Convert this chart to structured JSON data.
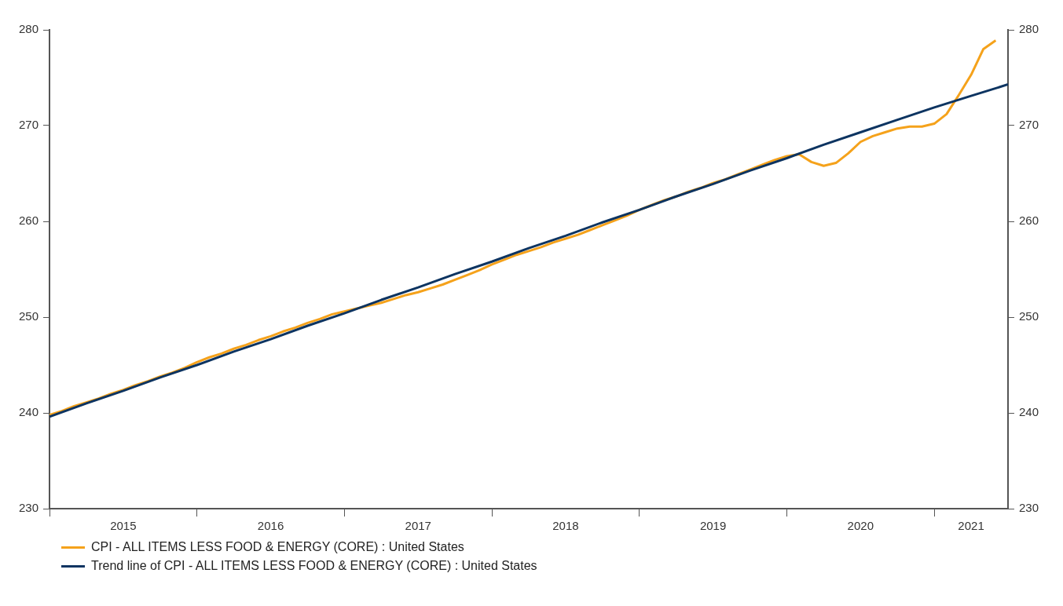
{
  "chart_data": {
    "type": "line",
    "x": [
      "2015-01",
      "2015-02",
      "2015-03",
      "2015-04",
      "2015-05",
      "2015-06",
      "2015-07",
      "2015-08",
      "2015-09",
      "2015-10",
      "2015-11",
      "2015-12",
      "2016-01",
      "2016-02",
      "2016-03",
      "2016-04",
      "2016-05",
      "2016-06",
      "2016-07",
      "2016-08",
      "2016-09",
      "2016-10",
      "2016-11",
      "2016-12",
      "2017-01",
      "2017-02",
      "2017-03",
      "2017-04",
      "2017-05",
      "2017-06",
      "2017-07",
      "2017-08",
      "2017-09",
      "2017-10",
      "2017-11",
      "2017-12",
      "2018-01",
      "2018-02",
      "2018-03",
      "2018-04",
      "2018-05",
      "2018-06",
      "2018-07",
      "2018-08",
      "2018-09",
      "2018-10",
      "2018-11",
      "2018-12",
      "2019-01",
      "2019-02",
      "2019-03",
      "2019-04",
      "2019-05",
      "2019-06",
      "2019-07",
      "2019-08",
      "2019-09",
      "2019-10",
      "2019-11",
      "2019-12",
      "2020-01",
      "2020-02",
      "2020-03",
      "2020-04",
      "2020-05",
      "2020-06",
      "2020-07",
      "2020-08",
      "2020-09",
      "2020-10",
      "2020-11",
      "2020-12",
      "2021-01",
      "2021-02",
      "2021-03",
      "2021-04",
      "2021-05",
      "2021-06"
    ],
    "series": [
      {
        "name": "CPI - ALL ITEMS LESS FOOD & ENERGY (CORE) : United States",
        "color": "#f5a21b",
        "values": [
          239.8,
          240.2,
          240.7,
          241.1,
          241.5,
          242.0,
          242.4,
          242.9,
          243.3,
          243.8,
          244.2,
          244.7,
          245.3,
          245.8,
          246.2,
          246.7,
          247.1,
          247.6,
          248.0,
          248.5,
          248.9,
          249.4,
          249.8,
          250.3,
          250.6,
          250.9,
          251.2,
          251.5,
          251.9,
          252.3,
          252.6,
          253.0,
          253.4,
          253.9,
          254.4,
          254.9,
          255.5,
          256.0,
          256.5,
          256.9,
          257.3,
          257.8,
          258.2,
          258.6,
          259.1,
          259.6,
          260.1,
          260.6,
          261.2,
          261.7,
          262.2,
          262.6,
          263.1,
          263.5,
          264.0,
          264.4,
          264.9,
          265.4,
          265.9,
          266.4,
          266.8,
          267.0,
          266.2,
          265.8,
          266.1,
          267.1,
          268.3,
          268.9,
          269.3,
          269.7,
          269.9,
          269.9,
          270.2,
          271.2,
          273.2,
          275.3,
          278.0,
          278.9
        ]
      },
      {
        "name": "Trend line of CPI - ALL ITEMS LESS FOOD & ENERGY (CORE) : United States",
        "type": "line",
        "color": "#0d3461",
        "x": [
          "2015-01",
          "2015-04",
          "2015-07",
          "2015-10",
          "2016-01",
          "2016-04",
          "2016-07",
          "2016-10",
          "2017-01",
          "2017-04",
          "2017-07",
          "2017-10",
          "2018-01",
          "2018-04",
          "2018-07",
          "2018-10",
          "2019-01",
          "2019-04",
          "2019-07",
          "2019-10",
          "2020-01",
          "2020-04",
          "2020-07",
          "2020-10",
          "2021-01",
          "2021-04",
          "2021-07"
        ],
        "values": [
          239.6,
          241.0,
          242.3,
          243.7,
          245.0,
          246.4,
          247.7,
          249.1,
          250.4,
          251.8,
          253.1,
          254.5,
          255.8,
          257.2,
          258.5,
          259.9,
          261.2,
          262.6,
          263.9,
          265.3,
          266.6,
          268.0,
          269.3,
          270.6,
          271.9,
          273.1,
          274.3
        ]
      }
    ],
    "xlim": [
      "2015-01",
      "2021-07"
    ],
    "xticks": [
      {
        "value": "2015-01",
        "label": null
      },
      {
        "value": "2015-07",
        "label": "2015"
      },
      {
        "value": "2016-01",
        "label": null
      },
      {
        "value": "2016-07",
        "label": "2016"
      },
      {
        "value": "2017-01",
        "label": null
      },
      {
        "value": "2017-07",
        "label": "2017"
      },
      {
        "value": "2018-01",
        "label": null
      },
      {
        "value": "2018-07",
        "label": "2018"
      },
      {
        "value": "2019-01",
        "label": null
      },
      {
        "value": "2019-07",
        "label": "2019"
      },
      {
        "value": "2020-01",
        "label": null
      },
      {
        "value": "2020-07",
        "label": "2020"
      },
      {
        "value": "2021-01",
        "label": null
      },
      {
        "value": "2021-04",
        "label": "2021"
      }
    ],
    "ylim": [
      230,
      280
    ],
    "yticks": [
      230,
      240,
      250,
      260,
      270,
      280
    ],
    "y2lim": [
      230,
      280
    ],
    "y2ticks": [
      230,
      240,
      250,
      260,
      270,
      280
    ],
    "grid": false,
    "legend": "bottom left",
    "marker": "none",
    "line_style": "solid"
  }
}
